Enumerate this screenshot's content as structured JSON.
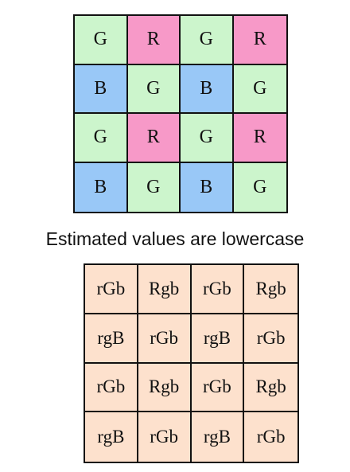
{
  "colors": {
    "G": "#ccf5cc",
    "R": "#f799c8",
    "B": "#99c8f7",
    "estimated": "#fde1cd",
    "border": "#111111"
  },
  "bayer_grid": {
    "rows": [
      [
        "G",
        "R",
        "G",
        "R"
      ],
      [
        "B",
        "G",
        "B",
        "G"
      ],
      [
        "G",
        "R",
        "G",
        "R"
      ],
      [
        "B",
        "G",
        "B",
        "G"
      ]
    ]
  },
  "caption": "Estimated values are lowercase",
  "estimated_grid": {
    "rows": [
      [
        "rGb",
        "Rgb",
        "rGb",
        "Rgb"
      ],
      [
        "rgB",
        "rGb",
        "rgB",
        "rGb"
      ],
      [
        "rGb",
        "Rgb",
        "rGb",
        "Rgb"
      ],
      [
        "rgB",
        "rGb",
        "rgB",
        "rGb"
      ]
    ]
  }
}
